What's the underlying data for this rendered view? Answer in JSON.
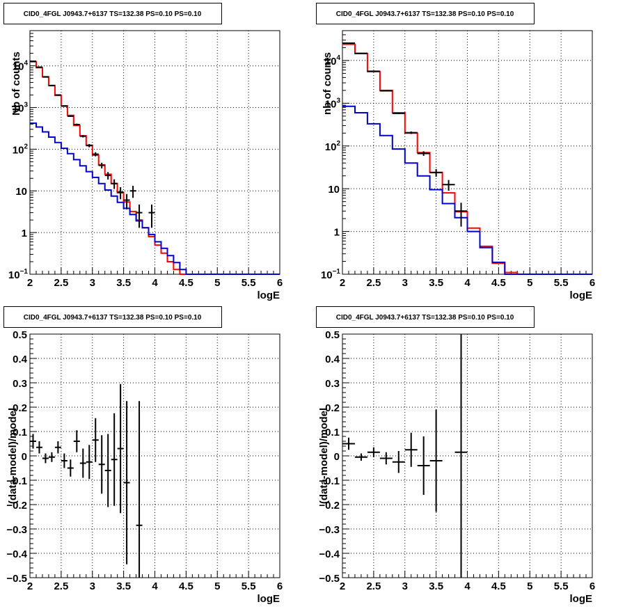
{
  "chart_data": [
    {
      "type": "line",
      "panel": "top-left",
      "title": "CID0_4FGL J0943.7+6137 TS=132.38 PS=0.10 PS=0.10",
      "xlabel": "logE",
      "ylabel": "Nb of counts",
      "yscale": "log",
      "xlim": [
        2,
        6
      ],
      "ylim": [
        0.1,
        70000
      ],
      "grid": true,
      "xticks": [
        "2",
        "2.5",
        "3",
        "3.5",
        "4",
        "4.5",
        "5",
        "5.5",
        "6"
      ],
      "yticks": [
        {
          "v": 0.1,
          "base": "10",
          "exp": "−1"
        },
        {
          "v": 1,
          "label": "1"
        },
        {
          "v": 10,
          "label": "10"
        },
        {
          "v": 100,
          "base": "10",
          "exp": "2"
        },
        {
          "v": 1000,
          "base": "10",
          "exp": "3"
        },
        {
          "v": 10000,
          "base": "10",
          "exp": "4"
        }
      ],
      "bin_edges": [
        2.0,
        2.1,
        2.2,
        2.3,
        2.4,
        2.5,
        2.6,
        2.7,
        2.8,
        2.9,
        3.0,
        3.1,
        3.2,
        3.3,
        3.4,
        3.5,
        3.6,
        3.7,
        3.8,
        3.9,
        4.0,
        4.1,
        4.2,
        4.3,
        4.4,
        4.5,
        4.6,
        4.7,
        4.8,
        4.9,
        5.0,
        5.1,
        5.2,
        5.3,
        5.4,
        5.5,
        5.6,
        5.7,
        5.8,
        5.9,
        6.0
      ],
      "series": [
        {
          "color": "#ff0000",
          "values": [
            12500,
            9000,
            5500,
            3400,
            1950,
            1100,
            650,
            370,
            210,
            125,
            72,
            42,
            25,
            15,
            9,
            5.4,
            3.2,
            2.0,
            1.3,
            0.8,
            0.5,
            0.32,
            0.2,
            0.13,
            0.1,
            0.1,
            0.1,
            0.1,
            0.1,
            0.1,
            0.1,
            0.1,
            0.1,
            0.1,
            0.1,
            0.1,
            0.1,
            0.1,
            0.1,
            0.1
          ]
        },
        {
          "color": "#0000cc",
          "values": [
            420,
            340,
            260,
            195,
            145,
            105,
            78,
            56,
            40,
            29,
            21,
            15,
            10.5,
            7.5,
            5.3,
            3.8,
            2.7,
            1.9,
            1.3,
            0.9,
            0.6,
            0.42,
            0.28,
            0.19,
            0.13,
            0.1,
            0.1,
            0.1,
            0.1,
            0.1,
            0.1,
            0.1,
            0.1,
            0.1,
            0.1,
            0.1,
            0.1,
            0.1,
            0.1,
            0.1
          ]
        }
      ],
      "points": [
        {
          "x": 2.05,
          "y": 12900,
          "xerr": 0.05,
          "yerr": 115
        },
        {
          "x": 2.15,
          "y": 9300,
          "xerr": 0.05,
          "yerr": 97
        },
        {
          "x": 2.25,
          "y": 5400,
          "xerr": 0.05,
          "yerr": 74
        },
        {
          "x": 2.35,
          "y": 3350,
          "xerr": 0.05,
          "yerr": 58
        },
        {
          "x": 2.45,
          "y": 2000,
          "xerr": 0.05,
          "yerr": 45
        },
        {
          "x": 2.55,
          "y": 1080,
          "xerr": 0.05,
          "yerr": 33
        },
        {
          "x": 2.65,
          "y": 620,
          "xerr": 0.05,
          "yerr": 25
        },
        {
          "x": 2.75,
          "y": 390,
          "xerr": 0.05,
          "yerr": 20
        },
        {
          "x": 2.85,
          "y": 205,
          "xerr": 0.05,
          "yerr": 14
        },
        {
          "x": 2.95,
          "y": 122,
          "xerr": 0.05,
          "yerr": 11
        },
        {
          "x": 3.05,
          "y": 76,
          "xerr": 0.05,
          "yerr": 8.7
        },
        {
          "x": 3.15,
          "y": 41,
          "xerr": 0.05,
          "yerr": 6.4
        },
        {
          "x": 3.25,
          "y": 23.5,
          "xerr": 0.05,
          "yerr": 4.8
        },
        {
          "x": 3.35,
          "y": 15,
          "xerr": 0.05,
          "yerr": 3.9
        },
        {
          "x": 3.45,
          "y": 9.3,
          "xerr": 0.05,
          "yerr": 3
        },
        {
          "x": 3.55,
          "y": 6,
          "xerr": 0.05,
          "yerr": 2.4
        },
        {
          "x": 3.65,
          "y": 10,
          "xerr": 0.05,
          "yerr": 3.2
        },
        {
          "x": 3.75,
          "y": 3,
          "xerr": 0.05,
          "yerr": 1.7
        },
        {
          "x": 3.95,
          "y": 3,
          "xerr": 0.05,
          "yerr": 1.7
        }
      ]
    },
    {
      "type": "line",
      "panel": "top-right",
      "title": "CID0_4FGL J0943.7+6137 TS=132.38 PS=0.10 PS=0.10",
      "xlabel": "logE",
      "ylabel": "nb of counts",
      "yscale": "log",
      "xlim": [
        2,
        6
      ],
      "ylim": [
        0.1,
        50000
      ],
      "grid": true,
      "xticks": [
        "2",
        "2.5",
        "3",
        "3.5",
        "4",
        "4.5",
        "5",
        "5.5",
        "6"
      ],
      "yticks": [
        {
          "v": 0.1,
          "base": "10",
          "exp": "−1"
        },
        {
          "v": 1,
          "label": "1"
        },
        {
          "v": 10,
          "label": "10"
        },
        {
          "v": 100,
          "base": "10",
          "exp": "2"
        },
        {
          "v": 1000,
          "base": "10",
          "exp": "3"
        },
        {
          "v": 10000,
          "base": "10",
          "exp": "4"
        }
      ],
      "bin_edges": [
        2.0,
        2.2,
        2.4,
        2.6,
        2.8,
        3.0,
        3.2,
        3.4,
        3.6,
        3.8,
        4.0,
        4.2,
        4.4,
        4.6,
        4.8,
        5.0,
        5.2,
        5.4,
        5.6,
        5.8,
        6.0
      ],
      "series": [
        {
          "color": "#ff0000",
          "values": [
            24000,
            14500,
            5500,
            2000,
            600,
            200,
            70,
            24,
            8,
            2.9,
            1.2,
            0.45,
            0.18,
            0.11,
            0.1,
            0.1,
            0.1,
            0.1,
            0.1,
            0.1
          ]
        },
        {
          "color": "#0000cc",
          "values": [
            850,
            600,
            330,
            175,
            85,
            40,
            20,
            9.5,
            4.5,
            2.1,
            1.0,
            0.42,
            0.19,
            0.1,
            0.1,
            0.1,
            0.1,
            0.1,
            0.1,
            0.1
          ]
        }
      ],
      "points": [
        {
          "x": 2.1,
          "y": 25500,
          "xerr": 0.1,
          "yerr": 160
        },
        {
          "x": 2.3,
          "y": 14700,
          "xerr": 0.1,
          "yerr": 121
        },
        {
          "x": 2.5,
          "y": 5600,
          "xerr": 0.1,
          "yerr": 75
        },
        {
          "x": 2.7,
          "y": 1950,
          "xerr": 0.1,
          "yerr": 44
        },
        {
          "x": 2.9,
          "y": 580,
          "xerr": 0.1,
          "yerr": 24
        },
        {
          "x": 3.1,
          "y": 205,
          "xerr": 0.1,
          "yerr": 14
        },
        {
          "x": 3.3,
          "y": 67,
          "xerr": 0.1,
          "yerr": 8.2
        },
        {
          "x": 3.5,
          "y": 24,
          "xerr": 0.1,
          "yerr": 4.9
        },
        {
          "x": 3.7,
          "y": 12.5,
          "xerr": 0.1,
          "yerr": 3.5
        },
        {
          "x": 3.9,
          "y": 3,
          "xerr": 0.1,
          "yerr": 1.7
        }
      ]
    },
    {
      "type": "scatter",
      "panel": "bottom-left",
      "title": "CID0_4FGL J0943.7+6137 TS=132.38 PS=0.10 PS=0.10",
      "xlabel": "logE",
      "ylabel": "(data-model)/model",
      "xlim": [
        2,
        6
      ],
      "ylim": [
        -0.5,
        0.5
      ],
      "grid": true,
      "xticks": [
        "2",
        "2.5",
        "3",
        "3.5",
        "4",
        "4.5",
        "5",
        "5.5",
        "6"
      ],
      "yticks": [
        {
          "v": -0.5,
          "label": "−0.5"
        },
        {
          "v": -0.4,
          "label": "−0.4"
        },
        {
          "v": -0.3,
          "label": "−0.3"
        },
        {
          "v": -0.2,
          "label": "−0.2"
        },
        {
          "v": -0.1,
          "label": "−0.1"
        },
        {
          "v": 0,
          "label": "0"
        },
        {
          "v": 0.1,
          "label": "0.1"
        },
        {
          "v": 0.2,
          "label": "0.2"
        },
        {
          "v": 0.3,
          "label": "0.3"
        },
        {
          "v": 0.4,
          "label": "0.4"
        },
        {
          "v": 0.5,
          "label": "0.5"
        }
      ],
      "points": [
        {
          "x": 2.05,
          "y": 0.06,
          "xerr": 0.05,
          "yerr": 0.03
        },
        {
          "x": 2.15,
          "y": 0.035,
          "xerr": 0.05,
          "yerr": 0.025
        },
        {
          "x": 2.25,
          "y": -0.01,
          "xerr": 0.05,
          "yerr": 0.02
        },
        {
          "x": 2.35,
          "y": -0.005,
          "xerr": 0.05,
          "yerr": 0.02
        },
        {
          "x": 2.45,
          "y": 0.035,
          "xerr": 0.05,
          "yerr": 0.025
        },
        {
          "x": 2.55,
          "y": -0.02,
          "xerr": 0.05,
          "yerr": 0.03
        },
        {
          "x": 2.65,
          "y": -0.05,
          "xerr": 0.05,
          "yerr": 0.035
        },
        {
          "x": 2.75,
          "y": 0.06,
          "xerr": 0.05,
          "yerr": 0.045
        },
        {
          "x": 2.85,
          "y": -0.03,
          "xerr": 0.05,
          "yerr": 0.06
        },
        {
          "x": 2.95,
          "y": -0.025,
          "xerr": 0.05,
          "yerr": 0.07
        },
        {
          "x": 3.05,
          "y": 0.065,
          "xerr": 0.05,
          "yerr": 0.09
        },
        {
          "x": 3.15,
          "y": -0.035,
          "xerr": 0.05,
          "yerr": 0.12
        },
        {
          "x": 3.25,
          "y": -0.06,
          "xerr": 0.05,
          "yerr": 0.15
        },
        {
          "x": 3.35,
          "y": -0.015,
          "xerr": 0.05,
          "yerr": 0.19
        },
        {
          "x": 3.45,
          "y": 0.03,
          "xerr": 0.05,
          "yerr": 0.265
        },
        {
          "x": 3.55,
          "y": -0.11,
          "xerr": 0.05,
          "yerr": 0.335
        },
        {
          "x": 3.75,
          "y": -0.285,
          "xerr": 0.05,
          "yerr": 0.51
        }
      ]
    },
    {
      "type": "scatter",
      "panel": "bottom-right",
      "title": "CID0_4FGL J0943.7+6137 TS=132.38 PS=0.10 PS=0.10",
      "xlabel": "logE",
      "ylabel": "(data-model)/model",
      "xlim": [
        2,
        6
      ],
      "ylim": [
        -0.5,
        0.5
      ],
      "grid": true,
      "xticks": [
        "2",
        "2.5",
        "3",
        "3.5",
        "4",
        "4.5",
        "5",
        "5.5",
        "6"
      ],
      "yticks": [
        {
          "v": -0.5,
          "label": "−0.5"
        },
        {
          "v": -0.4,
          "label": "−0.4"
        },
        {
          "v": -0.3,
          "label": "−0.3"
        },
        {
          "v": -0.2,
          "label": "−0.2"
        },
        {
          "v": -0.1,
          "label": "−0.1"
        },
        {
          "v": 0,
          "label": "0"
        },
        {
          "v": 0.1,
          "label": "0.1"
        },
        {
          "v": 0.2,
          "label": "0.2"
        },
        {
          "v": 0.3,
          "label": "0.3"
        },
        {
          "v": 0.4,
          "label": "0.4"
        },
        {
          "v": 0.5,
          "label": "0.5"
        }
      ],
      "points": [
        {
          "x": 2.1,
          "y": 0.05,
          "xerr": 0.1,
          "yerr": 0.025
        },
        {
          "x": 2.3,
          "y": -0.005,
          "xerr": 0.1,
          "yerr": 0.015
        },
        {
          "x": 2.5,
          "y": 0.015,
          "xerr": 0.1,
          "yerr": 0.02
        },
        {
          "x": 2.7,
          "y": -0.01,
          "xerr": 0.1,
          "yerr": 0.025
        },
        {
          "x": 2.9,
          "y": -0.025,
          "xerr": 0.1,
          "yerr": 0.045
        },
        {
          "x": 3.1,
          "y": 0.025,
          "xerr": 0.1,
          "yerr": 0.07
        },
        {
          "x": 3.3,
          "y": -0.04,
          "xerr": 0.1,
          "yerr": 0.12
        },
        {
          "x": 3.5,
          "y": -0.02,
          "xerr": 0.1,
          "yerr": 0.21
        },
        {
          "x": 3.9,
          "y": 0.015,
          "xerr": 0.1,
          "yerr": 0.6
        }
      ]
    }
  ]
}
